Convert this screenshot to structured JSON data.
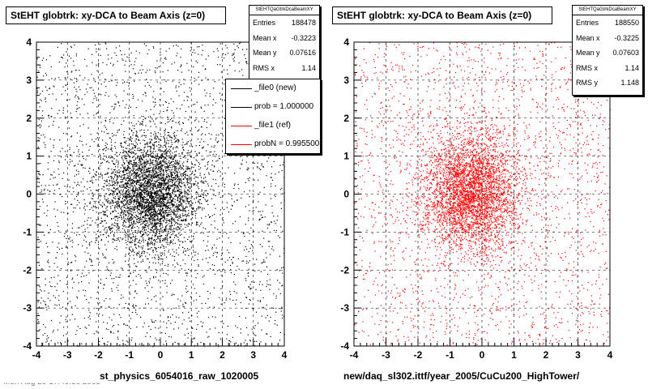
{
  "footer_text": "Mon Aug 29 17:49:36 2005",
  "chart_data": [
    {
      "type": "scatter",
      "title": "StEHT globtrk: xy-DCA to Beam Axis (z=0)",
      "xlabel": "st_physics_6054016_raw_1020005",
      "ylabel": "",
      "xlim": [
        -4,
        4
      ],
      "ylim": [
        -4,
        4
      ],
      "xticks": [
        "-4",
        "-3",
        "-2",
        "-1",
        "0",
        "1",
        "2",
        "3",
        "4"
      ],
      "yticks": [
        "-4",
        "-3",
        "-2",
        "-1",
        "0",
        "1",
        "2",
        "3",
        "4"
      ],
      "grid": true,
      "marker_color": "#000000",
      "stats": {
        "name": "StEHTQaGtrkDcaBeamXY",
        "entries_label": "Entries",
        "entries": "188478",
        "meanx_label": "Mean x",
        "meanx": "-0.3223",
        "meany_label": "Mean y",
        "meany": "0.07616",
        "rmsx_label": "RMS x",
        "rmsx": "1.14"
      },
      "legend": {
        "items": [
          {
            "label": "_file0 (new)",
            "color": "#000000"
          },
          {
            "label": "prob = 1.000000",
            "color": "#000000"
          },
          {
            "label": "_file1 (ref)",
            "color": "#ff0000"
          },
          {
            "label": "probN = 0.995500",
            "color": "#ff0000"
          }
        ]
      },
      "distribution": {
        "entries": 188478,
        "mean_x": -0.3223,
        "mean_y": 0.07616,
        "rms_x": 1.14
      }
    },
    {
      "type": "scatter",
      "title": "StEHT globtrk: xy-DCA to Beam Axis (z=0)",
      "xlabel": "new/daq_sl302.ittf/year_2005/CuCu200_HighTower/",
      "ylabel": "",
      "xlim": [
        -4,
        4
      ],
      "ylim": [
        -4,
        4
      ],
      "xticks": [
        "-4",
        "-3",
        "-2",
        "-1",
        "0",
        "1",
        "2",
        "3",
        "4"
      ],
      "yticks": [
        "-4",
        "-3",
        "-2",
        "-1",
        "0",
        "1",
        "2",
        "3",
        "4"
      ],
      "grid": true,
      "marker_color": "#ff0000",
      "stats": {
        "name": "StEHTQaGtrkDcaBeamXY",
        "entries_label": "Entries",
        "entries": "188550",
        "meanx_label": "Mean x",
        "meanx": "-0.3225",
        "meany_label": "Mean y",
        "meany": "0.07603",
        "rmsx_label": "RMS x",
        "rmsx": "1.14",
        "rmsy_label": "RMS y",
        "rmsy": "1.148"
      },
      "distribution": {
        "entries": 188550,
        "mean_x": -0.3225,
        "mean_y": 0.07603,
        "rms_x": 1.14,
        "rms_y": 1.148
      }
    }
  ]
}
